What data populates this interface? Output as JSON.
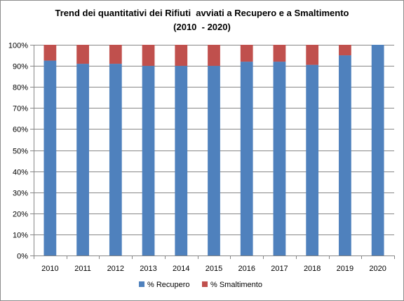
{
  "chart_data": {
    "type": "bar",
    "stacked": true,
    "title_line1": "Trend dei quantitativi dei Rifiuti  avviati a Recupero e a Smaltimento",
    "title_line2": "(2010  - 2020)",
    "categories": [
      "2010",
      "2011",
      "2012",
      "2013",
      "2014",
      "2015",
      "2016",
      "2017",
      "2018",
      "2019",
      "2020"
    ],
    "series": [
      {
        "name": "% Recupero",
        "color": "#4f81bd",
        "values": [
          92.5,
          91,
          91,
          90,
          90,
          90,
          92,
          92,
          90.5,
          95,
          100
        ]
      },
      {
        "name": "% Smaltimento",
        "color": "#c0504d",
        "values": [
          7.5,
          9,
          9,
          10,
          10,
          10,
          8,
          8,
          9.5,
          5,
          0
        ]
      }
    ],
    "y_ticks": [
      "0%",
      "10%",
      "20%",
      "30%",
      "40%",
      "50%",
      "60%",
      "70%",
      "80%",
      "90%",
      "100%"
    ],
    "ylim": [
      0,
      100
    ],
    "grid": true,
    "legend_position": "bottom"
  }
}
